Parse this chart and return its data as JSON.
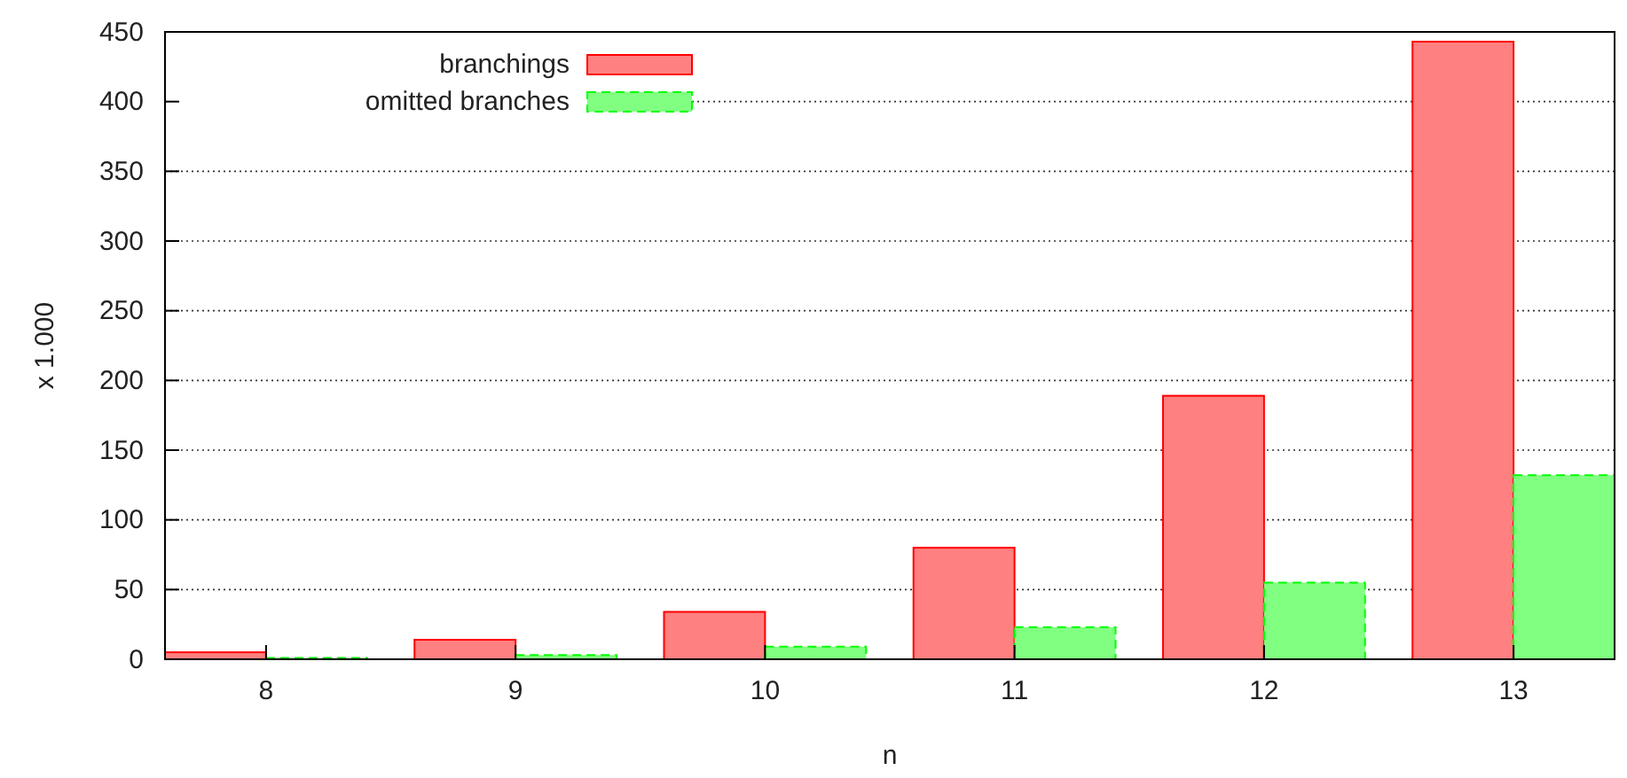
{
  "chart_data": {
    "type": "bar",
    "xlabel": "n",
    "ylabel": "x 1.000",
    "categories": [
      "8",
      "9",
      "10",
      "11",
      "12",
      "13"
    ],
    "series": [
      {
        "name": "branchings",
        "color": "#ff8080",
        "values": [
          5,
          14,
          34,
          80,
          189,
          443
        ]
      },
      {
        "name": "omitted branches",
        "color": "#80ff80",
        "line_style": "dashed",
        "values": [
          1,
          3,
          9,
          23,
          55,
          132
        ]
      }
    ],
    "ylim": [
      0,
      450
    ],
    "yticks": [
      0,
      50,
      100,
      150,
      200,
      250,
      300,
      350,
      400,
      450
    ],
    "grid": "y",
    "legend": "top left"
  }
}
